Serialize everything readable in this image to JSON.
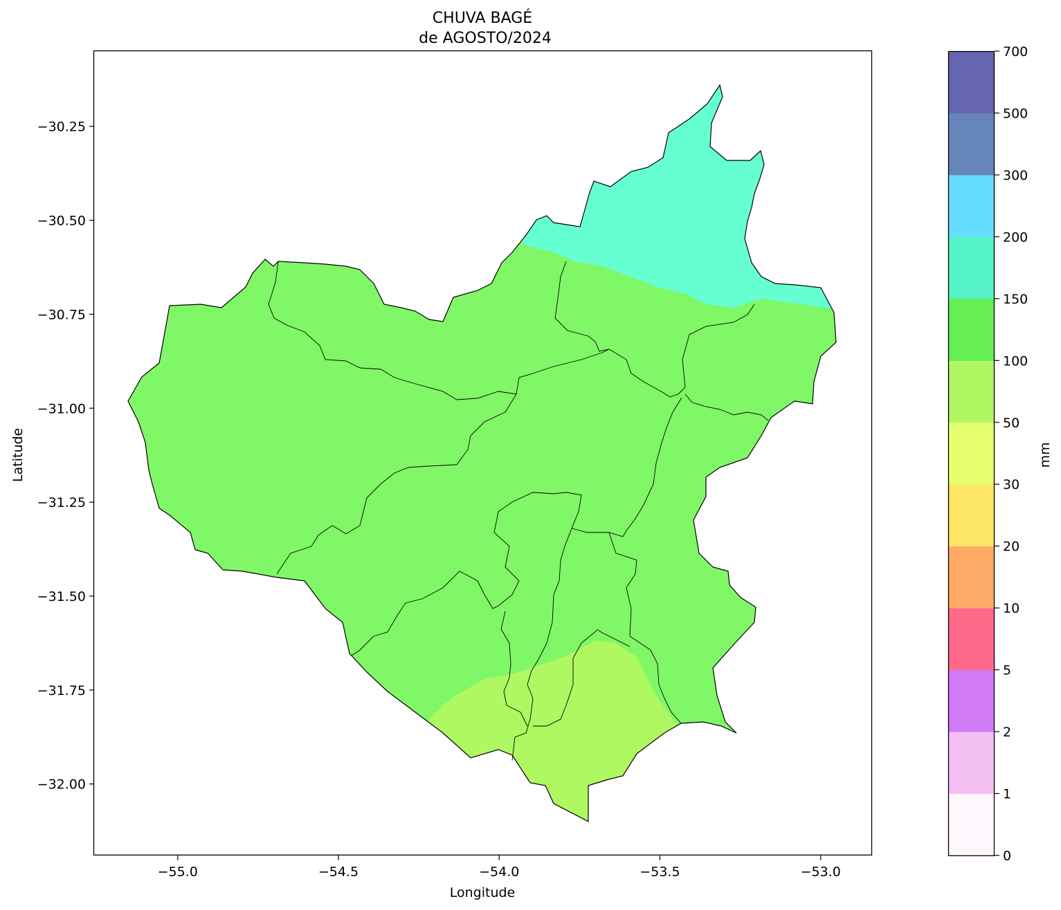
{
  "map": {
    "title_line1": "CHUVA BAGÉ",
    "title_line2": "de AGOSTO/2024",
    "xlabel": "Longitude",
    "ylabel": "Latitude",
    "x_ticks": [
      {
        "value": -55.0,
        "label": "−55.0"
      },
      {
        "value": -54.5,
        "label": "−54.5"
      },
      {
        "value": -54.0,
        "label": "−54.0"
      },
      {
        "value": -53.5,
        "label": "−53.5"
      },
      {
        "value": -53.0,
        "label": "−53.0"
      }
    ],
    "y_ticks": [
      {
        "value": -30.25,
        "label": "−30.25"
      },
      {
        "value": -30.5,
        "label": "−30.50"
      },
      {
        "value": -30.75,
        "label": "−30.75"
      },
      {
        "value": -31.0,
        "label": "−31.00"
      },
      {
        "value": -31.25,
        "label": "−31.25"
      },
      {
        "value": -31.5,
        "label": "−31.50"
      },
      {
        "value": -31.75,
        "label": "−31.75"
      },
      {
        "value": -32.0,
        "label": "−32.00"
      }
    ],
    "xlim": [
      -55.26,
      -52.84
    ],
    "ylim": [
      -32.19,
      -30.05
    ],
    "zone_colors": {
      "50-100": "#b0f862",
      "100-150": "#80f766",
      "150-200": "#66ffd1"
    }
  },
  "colorbar": {
    "label": "mm",
    "levels": [
      "0",
      "1",
      "2",
      "5",
      "10",
      "20",
      "30",
      "50",
      "100",
      "150",
      "200",
      "300",
      "500",
      "700"
    ],
    "colors": [
      "#fef7fd",
      "#f4c0f4",
      "#d07af8",
      "#ff6a8a",
      "#ffaa66",
      "#ffe766",
      "#e6ff70",
      "#b0f862",
      "#66ee55",
      "#55f2c8",
      "#66ddff",
      "#6685bb",
      "#6666b0"
    ]
  }
}
